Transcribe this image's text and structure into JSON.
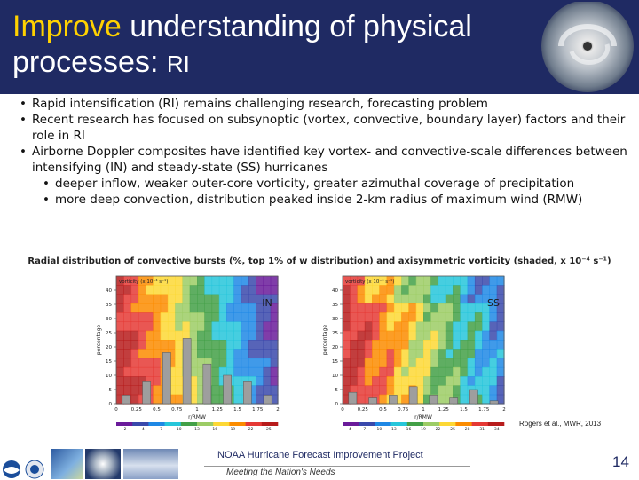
{
  "slide": {
    "title_highlight": "Improve",
    "title_rest_line1": " understanding of physical",
    "title_line2": "processes: ",
    "title_small": "RI",
    "bullets": [
      "Rapid intensification (RI) remains challenging research, forecasting problem",
      "Recent research has focused on subsynoptic (vortex, convective, boundary layer) factors and their role in RI",
      "Airborne Doppler composites have identified key vortex- and convective-scale differences between intensifying (IN) and steady-state (SS) hurricanes"
    ],
    "sub_bullets": [
      "deeper inflow, weaker outer-core vorticity, greater azimuthal coverage of precipitation",
      "more deep convection, distribution peaked inside 2-km radius of maximum wind (RMW)"
    ],
    "bullet_char": "•",
    "figure_title": "Radial distribution of convective bursts (%, top 1% of w distribution) and axisymmetric vorticity (shaded, x 10⁻⁴ s⁻¹)",
    "footer_project": "NOAA Hurricane Forecast Improvement Project",
    "footer_motto": "Meeting the Nation's Needs",
    "citation": "Rogers et al., MWR, 2013",
    "page_number": "14",
    "colors": {
      "header_bg": "#1f2a63",
      "title_highlight": "#ffd200",
      "title_text": "#ffffff"
    }
  },
  "chart_data": [
    {
      "type": "bar",
      "panel_label": "IN",
      "legend_text": "vorticity (x 10⁻⁴ s⁻¹)",
      "xlabel": "r/RMW",
      "ylabel": "percentage",
      "x_ticks": [
        "0",
        "0.25",
        "0.5",
        "0.75",
        "1",
        "1.25",
        "1.5",
        "1.75",
        "2"
      ],
      "y_ticks": [
        0,
        5,
        10,
        15,
        20,
        25,
        30,
        35,
        40
      ],
      "ylim": [
        0,
        45
      ],
      "categories": [
        "0.125",
        "0.375",
        "0.625",
        "0.875",
        "1.125",
        "1.375",
        "1.625",
        "1.875"
      ],
      "values": [
        3,
        8,
        18,
        23,
        14,
        10,
        8,
        3
      ],
      "colorbar_ticks": [
        "2",
        "4",
        "7",
        "10",
        "13",
        "16",
        "19",
        "22",
        "25"
      ]
    },
    {
      "type": "bar",
      "panel_label": "SS",
      "legend_text": "vorticity (x 10⁻⁴ s⁻¹)",
      "xlabel": "r/RMW",
      "ylabel": "percentage",
      "x_ticks": [
        "0",
        "0.25",
        "0.5",
        "0.75",
        "1",
        "1.25",
        "1.5",
        "1.75",
        "2"
      ],
      "y_ticks": [
        0,
        5,
        10,
        15,
        20,
        25,
        30,
        35,
        40
      ],
      "ylim": [
        0,
        45
      ],
      "categories": [
        "0.125",
        "0.375",
        "0.625",
        "0.875",
        "1.125",
        "1.375",
        "1.625",
        "1.875"
      ],
      "values": [
        4,
        2,
        3,
        6,
        3,
        2,
        5,
        1
      ],
      "colorbar_ticks": [
        "4",
        "7",
        "10",
        "13",
        "16",
        "19",
        "22",
        "25",
        "28",
        "31",
        "34"
      ]
    }
  ]
}
